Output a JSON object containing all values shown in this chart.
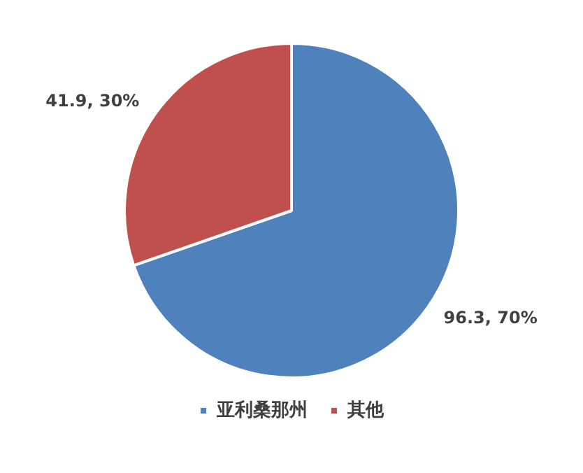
{
  "chart_data": {
    "type": "pie",
    "categories": [
      "亚利桑那州",
      "其他"
    ],
    "values": [
      96.3,
      41.9
    ],
    "colors": [
      "#4f81bd",
      "#c0504d"
    ],
    "value_labels": [
      "96.3, 70%",
      "41.9, 30%"
    ],
    "legend": "bottom"
  }
}
